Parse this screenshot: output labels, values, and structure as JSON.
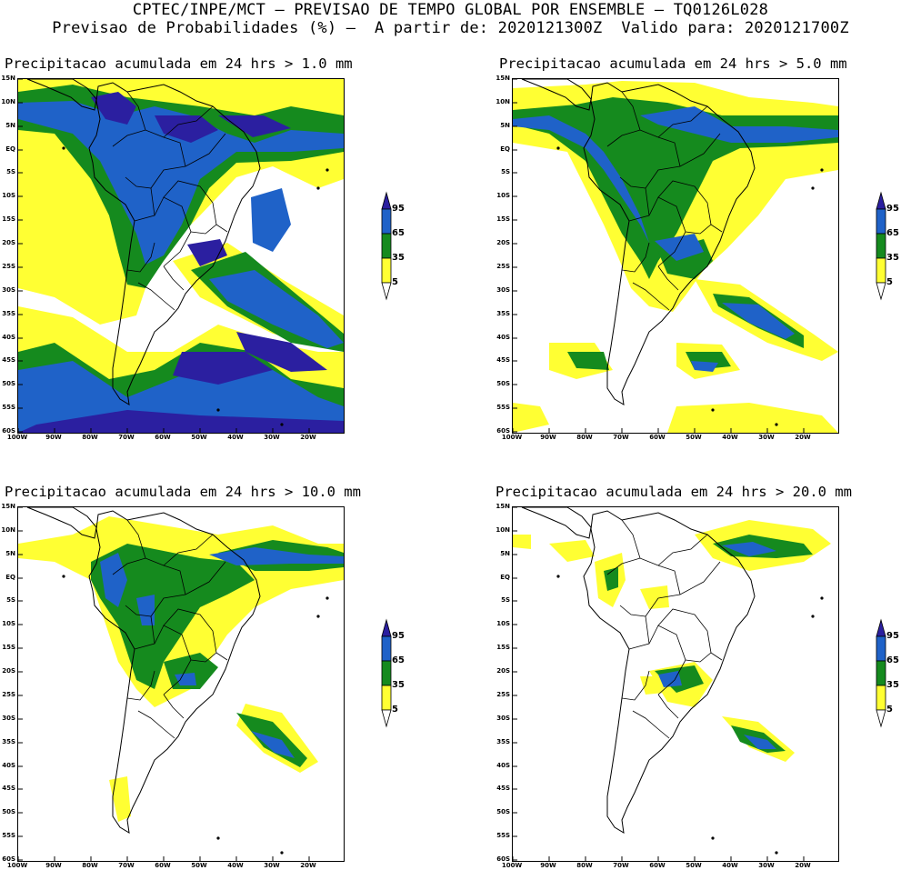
{
  "header": {
    "line1": "CPTEC/INPE/MCT — PREVISAO DE TEMPO GLOBAL POR ENSEMBLE — TQ0126L028",
    "line2": "Previsao de Probabilidades (%) —  A partir de: 2020121300Z  Valido para: 2020121700Z"
  },
  "panels": [
    {
      "title": "Precipitacao acumulada em 24 hrs > 1.0 mm"
    },
    {
      "title": "Precipitacao acumulada em 24 hrs > 5.0 mm"
    },
    {
      "title": "Precipitacao acumulada em 24 hrs > 10.0 mm"
    },
    {
      "title": "Precipitacao acumulada em 24 hrs > 20.0 mm"
    }
  ],
  "lat_labels": [
    "15N",
    "10N",
    "5N",
    "EQ",
    "5S",
    "10S",
    "15S",
    "20S",
    "25S",
    "30S",
    "35S",
    "40S",
    "45S",
    "50S",
    "55S",
    "60S"
  ],
  "lon_labels": [
    "100W",
    "90W",
    "80W",
    "70W",
    "60W",
    "50W",
    "40W",
    "30W",
    "20W"
  ],
  "legend": {
    "levels": [
      "95",
      "65",
      "35",
      "5"
    ],
    "colors": {
      "c95": "#2b1fa0",
      "c65": "#1f62c8",
      "c35": "#158a1e",
      "c5": "#ffff33",
      "below": "#ffffff"
    }
  }
}
